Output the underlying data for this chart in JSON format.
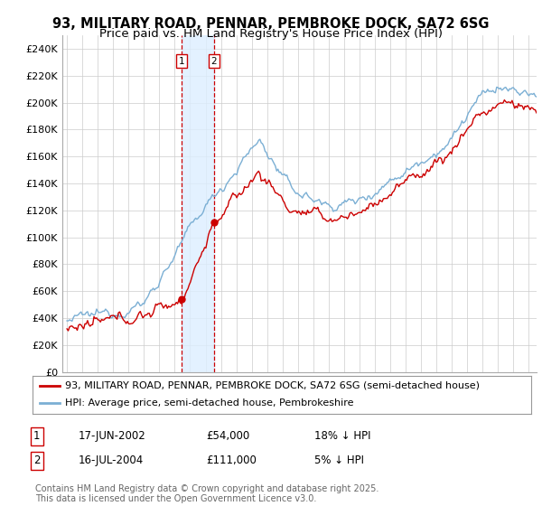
{
  "title": "93, MILITARY ROAD, PENNAR, PEMBROKE DOCK, SA72 6SG",
  "subtitle": "Price paid vs. HM Land Registry's House Price Index (HPI)",
  "yticks": [
    0,
    20000,
    40000,
    60000,
    80000,
    100000,
    120000,
    140000,
    160000,
    180000,
    200000,
    220000,
    240000
  ],
  "ytick_labels": [
    "£0",
    "£20K",
    "£40K",
    "£60K",
    "£80K",
    "£100K",
    "£120K",
    "£140K",
    "£160K",
    "£180K",
    "£200K",
    "£220K",
    "£240K"
  ],
  "ylim": [
    0,
    250000
  ],
  "xlim_start": 1994.7,
  "xlim_end": 2025.5,
  "hpi_color": "#7bafd4",
  "price_color": "#cc0000",
  "sale1_date": 2002.46,
  "sale1_price": 54000,
  "sale2_date": 2004.54,
  "sale2_price": 111000,
  "legend_line1": "93, MILITARY ROAD, PENNAR, PEMBROKE DOCK, SA72 6SG (semi-detached house)",
  "legend_line2": "HPI: Average price, semi-detached house, Pembrokeshire",
  "table_rows": [
    [
      "1",
      "17-JUN-2002",
      "£54,000",
      "18% ↓ HPI"
    ],
    [
      "2",
      "16-JUL-2004",
      "£111,000",
      "5% ↓ HPI"
    ]
  ],
  "footnote": "Contains HM Land Registry data © Crown copyright and database right 2025.\nThis data is licensed under the Open Government Licence v3.0.",
  "background_color": "#ffffff",
  "grid_color": "#cccccc",
  "shade_color": "#ddeeff",
  "title_fontsize": 10.5,
  "subtitle_fontsize": 9.5,
  "axis_fontsize": 8,
  "legend_fontsize": 8,
  "table_fontsize": 8.5,
  "footnote_fontsize": 7
}
